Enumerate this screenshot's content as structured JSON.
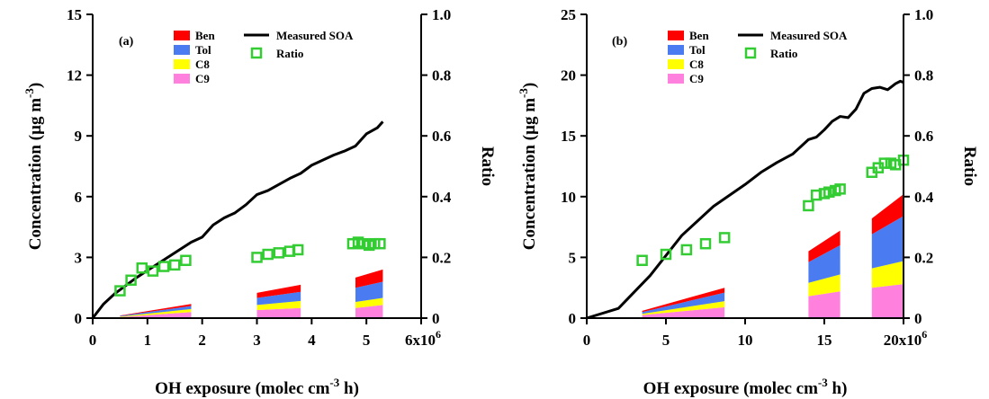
{
  "colors": {
    "Ben": "#ff0000",
    "Tol": "#4a7bf0",
    "C8": "#ffff00",
    "C9": "#ff80dd",
    "measured": "#000000",
    "ratio": "#33cc33"
  },
  "chart_data": [
    {
      "type": "area",
      "panel_label": "(a)",
      "xlabel": "OH exposure (molec cm",
      "xlabel_sup": "-3",
      "xlabel_tail": " h)",
      "ylabel": "Concentration (µg m",
      "ylabel_sup": "-3",
      "ylabel_tail": ")",
      "y2label": "Ratio",
      "xlim": [
        0,
        6000000
      ],
      "ylim": [
        0,
        15
      ],
      "y2lim": [
        0,
        1.0
      ],
      "x_ticks": [
        "0",
        "1",
        "2",
        "3",
        "4",
        "5",
        "6x10"
      ],
      "x_ticks_sup": "6",
      "y_ticks": [
        "0",
        "3",
        "6",
        "9",
        "12",
        "15"
      ],
      "y2_ticks": [
        "0",
        "0.2",
        "0.4",
        "0.6",
        "0.8",
        "1.0"
      ],
      "legend": [
        "Ben",
        "Tol",
        "C8",
        "C9"
      ],
      "legend_line": "Measured SOA",
      "legend_marker": "Ratio",
      "measured_soa": {
        "name": "Measured SOA",
        "x": [
          0,
          200000,
          400000,
          600000,
          800000,
          1000000,
          1200000,
          1400000,
          1600000,
          1800000,
          2000000,
          2200000,
          2400000,
          2600000,
          2800000,
          3000000,
          3200000,
          3400000,
          3600000,
          3800000,
          4000000,
          4200000,
          4400000,
          4600000,
          4800000,
          5000000,
          5200000,
          5300000
        ],
        "y": [
          0,
          0.7,
          1.2,
          1.6,
          2.0,
          2.35,
          2.7,
          3.05,
          3.4,
          3.75,
          4.0,
          4.6,
          4.95,
          5.2,
          5.6,
          6.1,
          6.3,
          6.6,
          6.9,
          7.15,
          7.55,
          7.8,
          8.05,
          8.25,
          8.5,
          9.1,
          9.4,
          9.7
        ]
      },
      "stack_series": [
        "C9",
        "C8",
        "Tol",
        "Ben"
      ],
      "stacks": [
        {
          "x": [
            500000,
            1800000
          ],
          "C9": [
            0.05,
            0.3
          ],
          "C8": [
            0.03,
            0.15
          ],
          "Tol": [
            0.03,
            0.15
          ],
          "Ben": [
            0.02,
            0.1
          ]
        },
        {
          "x": [
            3000000,
            3800000
          ],
          "C9": [
            0.4,
            0.5
          ],
          "C8": [
            0.25,
            0.35
          ],
          "Tol": [
            0.35,
            0.45
          ],
          "Ben": [
            0.25,
            0.35
          ]
        },
        {
          "x": [
            4800000,
            5300000
          ],
          "C9": [
            0.5,
            0.65
          ],
          "C8": [
            0.3,
            0.35
          ],
          "Tol": [
            0.7,
            0.8
          ],
          "Ben": [
            0.5,
            0.6
          ]
        }
      ],
      "ratio": {
        "name": "Ratio",
        "x": [
          500000,
          700000,
          900000,
          1100000,
          1300000,
          1500000,
          1700000,
          3000000,
          3200000,
          3400000,
          3600000,
          3750000,
          4750000,
          4850000,
          4950000,
          5050000,
          5150000,
          5250000
        ],
        "y": [
          0.09,
          0.125,
          0.165,
          0.155,
          0.17,
          0.175,
          0.19,
          0.2,
          0.21,
          0.215,
          0.22,
          0.225,
          0.245,
          0.25,
          0.245,
          0.24,
          0.245,
          0.245
        ]
      }
    },
    {
      "type": "area",
      "panel_label": "(b)",
      "xlabel": "OH exposure (molec cm",
      "xlabel_sup": "-3",
      "xlabel_tail": " h)",
      "ylabel": "Concentration (µg m",
      "ylabel_sup": "-3",
      "ylabel_tail": ")",
      "y2label": "Ratio",
      "xlim": [
        0,
        20000000
      ],
      "ylim": [
        0,
        25
      ],
      "y2lim": [
        0,
        1.0
      ],
      "x_ticks": [
        "0",
        "5",
        "10",
        "15",
        "20x10"
      ],
      "x_ticks_sup": "6",
      "y_ticks": [
        "0",
        "5",
        "10",
        "15",
        "20",
        "25"
      ],
      "y2_ticks": [
        "0",
        "0.2",
        "0.4",
        "0.6",
        "0.8",
        "1.0"
      ],
      "legend": [
        "Ben",
        "Tol",
        "C8",
        "C9"
      ],
      "legend_line": "Measured SOA",
      "legend_marker": "Ratio",
      "measured_soa": {
        "name": "Measured SOA",
        "x": [
          0,
          2000000,
          4000000,
          6000000,
          8000000,
          10000000,
          11000000,
          12000000,
          13000000,
          14000000,
          14500000,
          15000000,
          15500000,
          16000000,
          16500000,
          17000000,
          17500000,
          18000000,
          18500000,
          19000000,
          19500000,
          19800000,
          20000000
        ],
        "y": [
          0,
          0.8,
          3.5,
          6.8,
          9.2,
          11.0,
          12.0,
          12.8,
          13.5,
          14.7,
          14.9,
          15.5,
          16.2,
          16.6,
          16.5,
          17.2,
          18.5,
          18.9,
          19.0,
          18.8,
          19.3,
          19.5,
          19.4
        ]
      },
      "stack_series": [
        "C9",
        "C8",
        "Tol",
        "Ben"
      ],
      "stacks": [
        {
          "x": [
            3500000,
            8700000
          ],
          "C9": [
            0.25,
            0.9
          ],
          "C8": [
            0.1,
            0.5
          ],
          "Tol": [
            0.15,
            0.7
          ],
          "Ben": [
            0.1,
            0.4
          ]
        },
        {
          "x": [
            14000000,
            16000000
          ],
          "C9": [
            1.8,
            2.2
          ],
          "C8": [
            1.1,
            1.4
          ],
          "Tol": [
            1.7,
            2.4
          ],
          "Ben": [
            0.9,
            1.2
          ]
        },
        {
          "x": [
            18000000,
            20000000
          ],
          "C9": [
            2.5,
            2.8
          ],
          "C8": [
            1.6,
            1.9
          ],
          "Tol": [
            2.8,
            3.7
          ],
          "Ben": [
            1.3,
            1.8
          ]
        }
      ],
      "ratio": {
        "name": "Ratio",
        "x": [
          3500000,
          5000000,
          6300000,
          7500000,
          8700000,
          14000000,
          14500000,
          15000000,
          15300000,
          15700000,
          16000000,
          18000000,
          18400000,
          18800000,
          19200000,
          19500000,
          20000000
        ],
        "y": [
          0.19,
          0.21,
          0.225,
          0.245,
          0.265,
          0.37,
          0.405,
          0.41,
          0.415,
          0.42,
          0.425,
          0.48,
          0.495,
          0.51,
          0.51,
          0.505,
          0.52
        ]
      }
    }
  ]
}
